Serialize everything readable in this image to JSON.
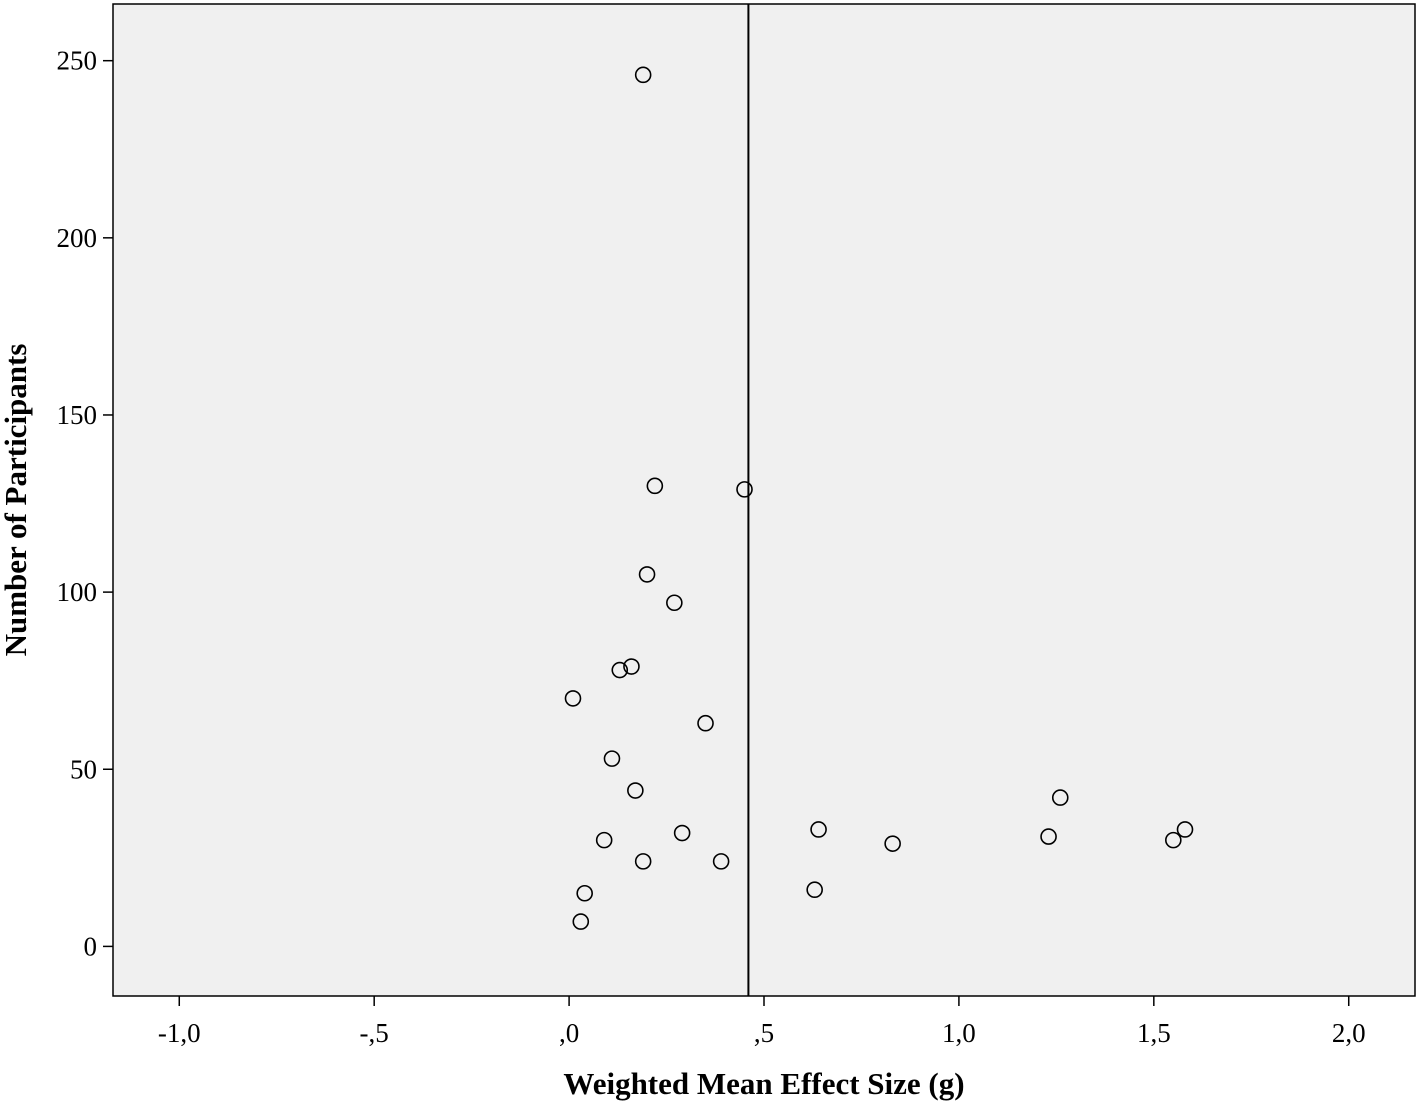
{
  "chart_data": {
    "type": "scatter",
    "title": "",
    "xlabel": "Weighted Mean Effect Size (g)",
    "ylabel": "Number of Participants",
    "xlim": [
      -1.17,
      2.17
    ],
    "ylim": [
      -14,
      266
    ],
    "x_ticks": [
      {
        "value": -1.0,
        "label": "-1,0"
      },
      {
        "value": -0.5,
        "label": "-,5"
      },
      {
        "value": 0.0,
        "label": ",0"
      },
      {
        "value": 0.5,
        "label": ",5"
      },
      {
        "value": 1.0,
        "label": "1,0"
      },
      {
        "value": 1.5,
        "label": "1,5"
      },
      {
        "value": 2.0,
        "label": "2,0"
      }
    ],
    "y_ticks": [
      {
        "value": 0,
        "label": "0"
      },
      {
        "value": 50,
        "label": "50"
      },
      {
        "value": 100,
        "label": "100"
      },
      {
        "value": 150,
        "label": "150"
      },
      {
        "value": 200,
        "label": "200"
      },
      {
        "value": 250,
        "label": "250"
      }
    ],
    "reference_line_x": 0.46,
    "grid": false,
    "background_color": "#f0f0f0",
    "marker": "open-circle",
    "points": [
      {
        "x": 0.19,
        "y": 246
      },
      {
        "x": 0.22,
        "y": 130
      },
      {
        "x": 0.45,
        "y": 129
      },
      {
        "x": 0.2,
        "y": 105
      },
      {
        "x": 0.27,
        "y": 97
      },
      {
        "x": 0.16,
        "y": 79
      },
      {
        "x": 0.13,
        "y": 78
      },
      {
        "x": 0.01,
        "y": 70
      },
      {
        "x": 0.35,
        "y": 63
      },
      {
        "x": 0.11,
        "y": 53
      },
      {
        "x": 0.17,
        "y": 44
      },
      {
        "x": 0.09,
        "y": 30
      },
      {
        "x": 0.29,
        "y": 32
      },
      {
        "x": 0.19,
        "y": 24
      },
      {
        "x": 0.39,
        "y": 24
      },
      {
        "x": 0.04,
        "y": 15
      },
      {
        "x": 0.03,
        "y": 7
      },
      {
        "x": 0.63,
        "y": 16
      },
      {
        "x": 0.64,
        "y": 33
      },
      {
        "x": 0.83,
        "y": 29
      },
      {
        "x": 1.23,
        "y": 31
      },
      {
        "x": 1.26,
        "y": 42
      },
      {
        "x": 1.55,
        "y": 30
      },
      {
        "x": 1.58,
        "y": 33
      }
    ]
  }
}
